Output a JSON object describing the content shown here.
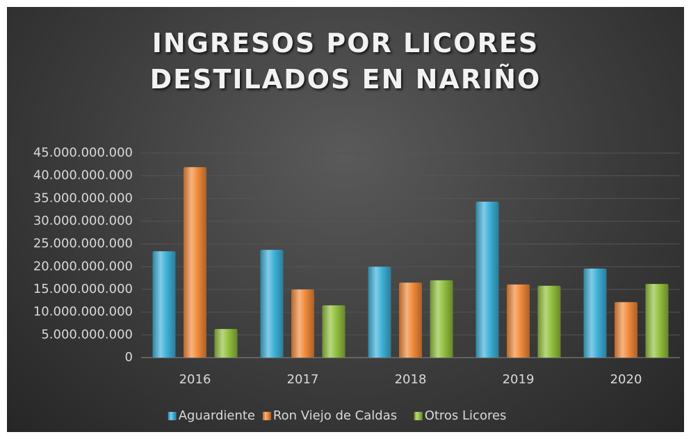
{
  "chart_data": {
    "type": "bar",
    "title": "INGRESOS POR LICORES DESTILADOS EN NARIÑO",
    "categories": [
      "2016",
      "2017",
      "2018",
      "2019",
      "2020"
    ],
    "series": [
      {
        "name": "Aguardiente",
        "color": "#3fb1d9",
        "values": [
          23400000000,
          23700000000,
          20000000000,
          34300000000,
          19600000000
        ]
      },
      {
        "name": "Ron Viejo de Caldas",
        "color": "#f28b3b",
        "values": [
          41900000000,
          15000000000,
          16500000000,
          16100000000,
          12200000000
        ]
      },
      {
        "name": "Otros Licores",
        "color": "#93c13f",
        "values": [
          6300000000,
          11500000000,
          17000000000,
          15800000000,
          16200000000
        ]
      }
    ],
    "ylim": [
      0,
      45000000000
    ],
    "yticks": [
      0,
      {
        "value": 5000000000,
        "label": "5.000.000.000"
      },
      {
        "value": 10000000000,
        "label": "10.000.000.000"
      },
      {
        "value": 15000000000,
        "label": "15.000.000.000"
      },
      {
        "value": 20000000000,
        "label": "20.000.000.000"
      },
      {
        "value": 25000000000,
        "label": "25.000.000.000"
      },
      {
        "value": 30000000000,
        "label": "30.000.000.000"
      },
      {
        "value": 35000000000,
        "label": "35.000.000.000"
      },
      {
        "value": 40000000000,
        "label": "40.000.000.000"
      },
      {
        "value": 45000000000,
        "label": "45.000.000.000"
      }
    ],
    "grid": true,
    "legend": "bottom"
  }
}
